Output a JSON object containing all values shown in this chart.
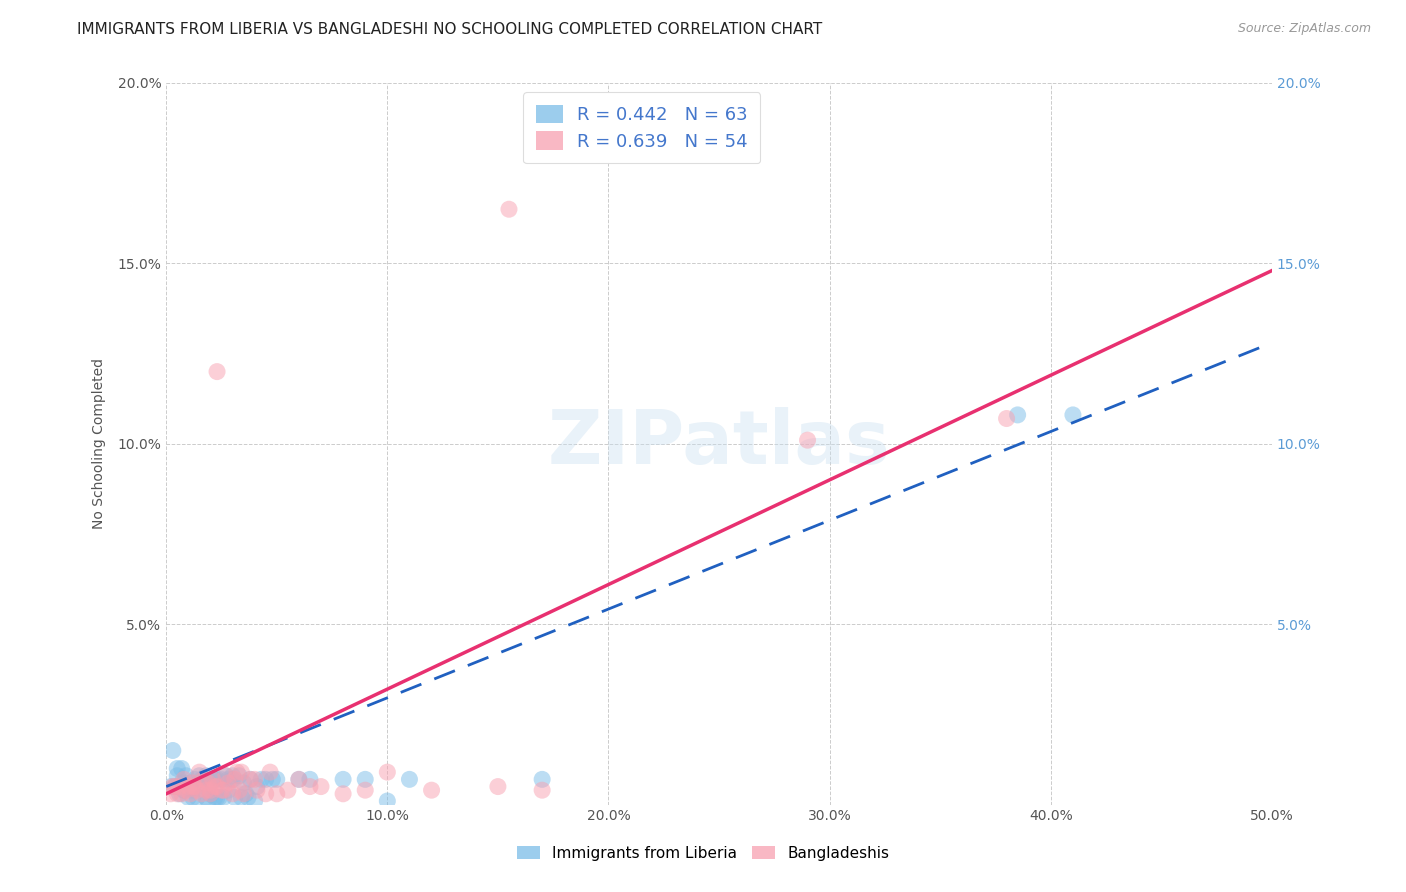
{
  "title": "IMMIGRANTS FROM LIBERIA VS BANGLADESHI NO SCHOOLING COMPLETED CORRELATION CHART",
  "source": "Source: ZipAtlas.com",
  "ylabel": "No Schooling Completed",
  "xlim": [
    0.0,
    0.5
  ],
  "ylim": [
    0.0,
    0.2
  ],
  "xticks": [
    0.0,
    0.1,
    0.2,
    0.3,
    0.4,
    0.5
  ],
  "yticks": [
    0.0,
    0.05,
    0.1,
    0.15,
    0.2
  ],
  "xtick_labels": [
    "0.0%",
    "10.0%",
    "20.0%",
    "30.0%",
    "40.0%",
    "50.0%"
  ],
  "ytick_labels": [
    "",
    "5.0%",
    "10.0%",
    "15.0%",
    "20.0%"
  ],
  "legend1_label": "R = 0.442   N = 63",
  "legend2_label": "R = 0.639   N = 54",
  "liberia_color": "#7bbde8",
  "bangladeshi_color": "#f8a0b0",
  "liberia_line_color": "#2060c0",
  "bangladeshi_line_color": "#e83070",
  "background_color": "#ffffff",
  "grid_color": "#cccccc",
  "title_fontsize": 11,
  "label_fontsize": 10,
  "tick_fontsize": 10,
  "tick_color_right": "#5b9bd5",
  "liberia_line": [
    [
      0.0,
      0.005
    ],
    [
      0.5,
      0.128
    ]
  ],
  "bangladeshi_line": [
    [
      0.0,
      0.003
    ],
    [
      0.5,
      0.148
    ]
  ],
  "liberia_points": [
    [
      0.002,
      0.005
    ],
    [
      0.003,
      0.015
    ],
    [
      0.004,
      0.005
    ],
    [
      0.005,
      0.01
    ],
    [
      0.005,
      0.008
    ],
    [
      0.006,
      0.003
    ],
    [
      0.007,
      0.006
    ],
    [
      0.007,
      0.01
    ],
    [
      0.008,
      0.004
    ],
    [
      0.008,
      0.006
    ],
    [
      0.008,
      0.004
    ],
    [
      0.009,
      0.008
    ],
    [
      0.01,
      0.005
    ],
    [
      0.01,
      0.002
    ],
    [
      0.011,
      0.006
    ],
    [
      0.012,
      0.002
    ],
    [
      0.012,
      0.004
    ],
    [
      0.013,
      0.007
    ],
    [
      0.014,
      0.002
    ],
    [
      0.015,
      0.006
    ],
    [
      0.015,
      0.008
    ],
    [
      0.016,
      0.007
    ],
    [
      0.017,
      0.007
    ],
    [
      0.018,
      0.008
    ],
    [
      0.018,
      0.002
    ],
    [
      0.019,
      0.001
    ],
    [
      0.02,
      0.003
    ],
    [
      0.02,
      0.003
    ],
    [
      0.021,
      0.007
    ],
    [
      0.022,
      0.007
    ],
    [
      0.022,
      0.002
    ],
    [
      0.023,
      0.002
    ],
    [
      0.023,
      0.007
    ],
    [
      0.024,
      0.002
    ],
    [
      0.025,
      0.007
    ],
    [
      0.026,
      0.002
    ],
    [
      0.027,
      0.008
    ],
    [
      0.028,
      0.007
    ],
    [
      0.028,
      0.004
    ],
    [
      0.03,
      0.008
    ],
    [
      0.03,
      0.007
    ],
    [
      0.031,
      0.002
    ],
    [
      0.033,
      0.008
    ],
    [
      0.034,
      0.002
    ],
    [
      0.035,
      0.006
    ],
    [
      0.036,
      0.003
    ],
    [
      0.037,
      0.002
    ],
    [
      0.038,
      0.007
    ],
    [
      0.04,
      0.001
    ],
    [
      0.041,
      0.005
    ],
    [
      0.043,
      0.007
    ],
    [
      0.045,
      0.007
    ],
    [
      0.048,
      0.007
    ],
    [
      0.05,
      0.007
    ],
    [
      0.06,
      0.007
    ],
    [
      0.065,
      0.007
    ],
    [
      0.08,
      0.007
    ],
    [
      0.09,
      0.007
    ],
    [
      0.1,
      0.001
    ],
    [
      0.11,
      0.007
    ],
    [
      0.17,
      0.007
    ],
    [
      0.385,
      0.108
    ],
    [
      0.41,
      0.108
    ]
  ],
  "bangladeshi_points": [
    [
      0.002,
      0.003
    ],
    [
      0.003,
      0.005
    ],
    [
      0.004,
      0.005
    ],
    [
      0.005,
      0.003
    ],
    [
      0.006,
      0.005
    ],
    [
      0.007,
      0.003
    ],
    [
      0.008,
      0.007
    ],
    [
      0.009,
      0.004
    ],
    [
      0.01,
      0.005
    ],
    [
      0.011,
      0.003
    ],
    [
      0.012,
      0.006
    ],
    [
      0.012,
      0.005
    ],
    [
      0.013,
      0.005
    ],
    [
      0.014,
      0.004
    ],
    [
      0.015,
      0.009
    ],
    [
      0.016,
      0.003
    ],
    [
      0.017,
      0.007
    ],
    [
      0.018,
      0.004
    ],
    [
      0.019,
      0.006
    ],
    [
      0.02,
      0.004
    ],
    [
      0.02,
      0.003
    ],
    [
      0.021,
      0.007
    ],
    [
      0.022,
      0.005
    ],
    [
      0.023,
      0.005
    ],
    [
      0.023,
      0.12
    ],
    [
      0.025,
      0.004
    ],
    [
      0.026,
      0.004
    ],
    [
      0.027,
      0.008
    ],
    [
      0.028,
      0.006
    ],
    [
      0.03,
      0.003
    ],
    [
      0.031,
      0.007
    ],
    [
      0.032,
      0.009
    ],
    [
      0.033,
      0.004
    ],
    [
      0.034,
      0.009
    ],
    [
      0.035,
      0.003
    ],
    [
      0.038,
      0.007
    ],
    [
      0.04,
      0.007
    ],
    [
      0.041,
      0.004
    ],
    [
      0.045,
      0.003
    ],
    [
      0.047,
      0.009
    ],
    [
      0.05,
      0.003
    ],
    [
      0.055,
      0.004
    ],
    [
      0.06,
      0.007
    ],
    [
      0.065,
      0.005
    ],
    [
      0.07,
      0.005
    ],
    [
      0.08,
      0.003
    ],
    [
      0.09,
      0.004
    ],
    [
      0.1,
      0.009
    ],
    [
      0.12,
      0.004
    ],
    [
      0.15,
      0.005
    ],
    [
      0.155,
      0.165
    ],
    [
      0.17,
      0.004
    ],
    [
      0.29,
      0.101
    ],
    [
      0.38,
      0.107
    ]
  ]
}
